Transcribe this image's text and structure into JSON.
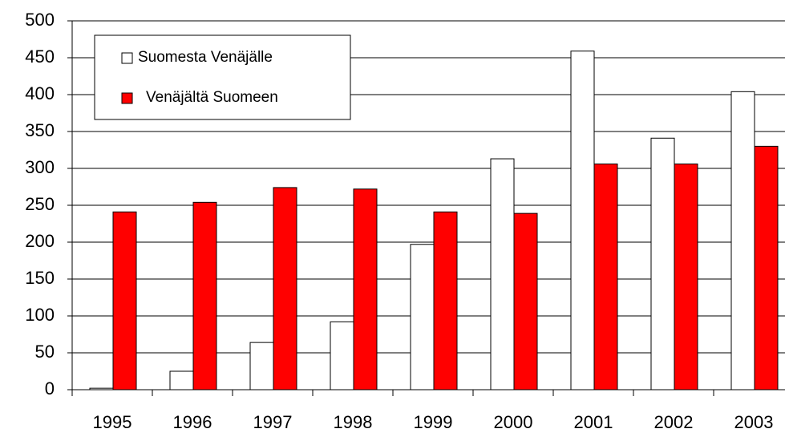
{
  "chart_data": {
    "type": "bar",
    "categories": [
      "1995",
      "1996",
      "1997",
      "1998",
      "1999",
      "2000",
      "2001",
      "2002",
      "2003"
    ],
    "series": [
      {
        "name": "Suomesta Venäjälle",
        "color": "#ffffff",
        "values": [
          2,
          25,
          64,
          92,
          197,
          313,
          459,
          341,
          404
        ]
      },
      {
        "name": "Venäjältä Suomeen",
        "color": "#ff0000",
        "values": [
          241,
          254,
          274,
          272,
          241,
          239,
          306,
          306,
          330
        ]
      }
    ],
    "ylim": [
      0,
      500
    ],
    "yticks": [
      0,
      50,
      100,
      150,
      200,
      250,
      300,
      350,
      400,
      450,
      500
    ],
    "grid": true,
    "legend": "upper left"
  }
}
